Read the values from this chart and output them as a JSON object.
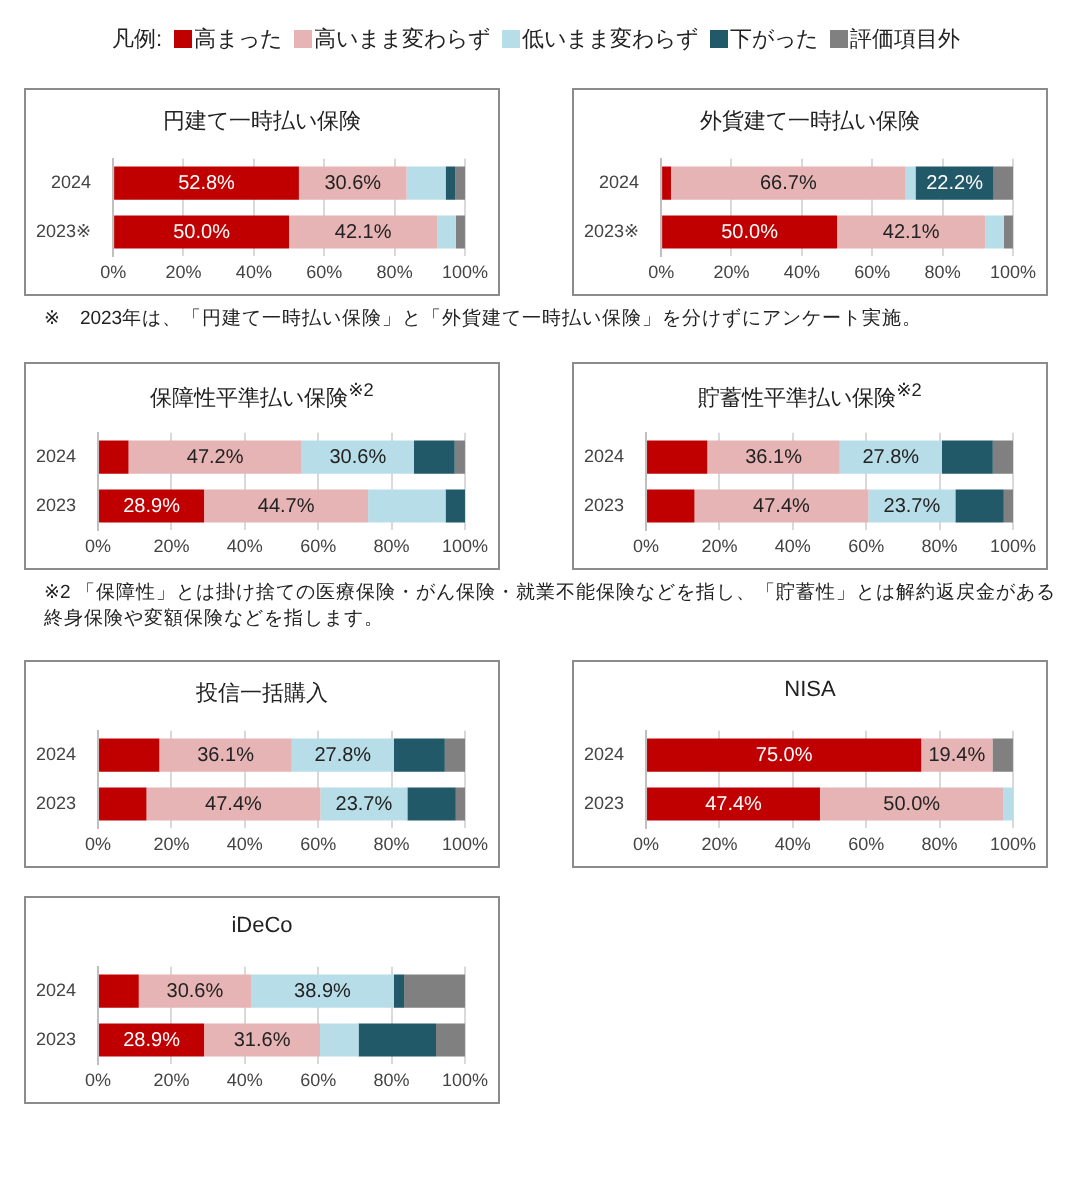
{
  "chart_data": [
    {
      "type": "bar",
      "orientation": "horizontal",
      "stacked": true,
      "title": "円建て一時払い保険",
      "legend": "top",
      "legend_title": "凡例:",
      "categories": [
        "2024",
        "2023※"
      ],
      "xlim": [
        0,
        100
      ],
      "xticks": [
        {
          "value": 0,
          "label": "0%"
        },
        {
          "value": 20,
          "label": "20%"
        },
        {
          "value": 40,
          "label": "40%"
        },
        {
          "value": 60,
          "label": "60%"
        },
        {
          "value": 80,
          "label": "80%"
        },
        {
          "value": 100,
          "label": "100%"
        }
      ],
      "grid": "x",
      "series": [
        {
          "name": "高まった",
          "color": "#c00000",
          "values": [
            52.8,
            50.0
          ],
          "value_labels": [
            "52.8%",
            "50.0%"
          ]
        },
        {
          "name": "高いまま変わらず",
          "color": "#e6b4b4",
          "values": [
            30.6,
            42.1
          ],
          "value_labels": [
            "30.6%",
            "42.1%"
          ]
        },
        {
          "name": "低いまま変わらず",
          "color": "#b7dde8",
          "values": [
            11.1,
            5.3
          ],
          "value_labels": [
            null,
            null
          ]
        },
        {
          "name": "下がった",
          "color": "#215968",
          "values": [
            2.8,
            0
          ],
          "value_labels": [
            null,
            null
          ]
        },
        {
          "name": "評価項目外",
          "color": "#808080",
          "values": [
            2.8,
            2.6
          ],
          "value_labels": [
            null,
            null
          ]
        }
      ]
    },
    {
      "type": "bar",
      "orientation": "horizontal",
      "stacked": true,
      "title": "外貨建て一時払い保険",
      "categories": [
        "2024",
        "2023※"
      ],
      "xlim": [
        0,
        100
      ],
      "xticks": [
        {
          "value": 0,
          "label": "0%"
        },
        {
          "value": 20,
          "label": "20%"
        },
        {
          "value": 40,
          "label": "40%"
        },
        {
          "value": 60,
          "label": "60%"
        },
        {
          "value": 80,
          "label": "80%"
        },
        {
          "value": 100,
          "label": "100%"
        }
      ],
      "grid": "x",
      "annotations": [
        "※　2023年は、「円建て一時払い保険」と「外貨建て一時払い保険」を分けずにアンケート実施。"
      ],
      "series": [
        {
          "color": "#c00000",
          "values": [
            2.8,
            50.0
          ],
          "value_labels": [
            null,
            "50.0%"
          ]
        },
        {
          "color": "#e6b4b4",
          "values": [
            66.7,
            42.1
          ],
          "value_labels": [
            "66.7%",
            "42.1%"
          ]
        },
        {
          "color": "#b7dde8",
          "values": [
            2.8,
            5.3
          ],
          "value_labels": [
            null,
            null
          ]
        },
        {
          "color": "#215968",
          "values": [
            22.2,
            0
          ],
          "value_labels": [
            "22.2%",
            null
          ]
        },
        {
          "color": "#808080",
          "values": [
            5.6,
            2.6
          ],
          "value_labels": [
            null,
            null
          ]
        }
      ]
    },
    {
      "type": "bar",
      "orientation": "horizontal",
      "stacked": true,
      "title": "保障性平準払い保険$^{※2}$",
      "categories": [
        "2024",
        "2023"
      ],
      "xlim": [
        0,
        100
      ],
      "xticks": [
        {
          "value": 0,
          "label": "0%"
        },
        {
          "value": 20,
          "label": "20%"
        },
        {
          "value": 40,
          "label": "40%"
        },
        {
          "value": 60,
          "label": "60%"
        },
        {
          "value": 80,
          "label": "80%"
        },
        {
          "value": 100,
          "label": "100%"
        }
      ],
      "grid": "x",
      "series": [
        {
          "color": "#c00000",
          "values": [
            8.3,
            28.9
          ],
          "value_labels": [
            null,
            "28.9%"
          ]
        },
        {
          "color": "#e6b4b4",
          "values": [
            47.2,
            44.7
          ],
          "value_labels": [
            "47.2%",
            "44.7%"
          ]
        },
        {
          "color": "#b7dde8",
          "values": [
            30.6,
            21.1
          ],
          "value_labels": [
            "30.6%",
            null
          ]
        },
        {
          "color": "#215968",
          "values": [
            11.1,
            5.3
          ],
          "value_labels": [
            null,
            null
          ]
        },
        {
          "color": "#808080",
          "values": [
            2.8,
            0
          ],
          "value_labels": [
            null,
            null
          ]
        }
      ]
    },
    {
      "type": "bar",
      "orientation": "horizontal",
      "stacked": true,
      "title": "貯蓄性平準払い保険$^{※2}$",
      "categories": [
        "2024",
        "2023"
      ],
      "xlim": [
        0,
        100
      ],
      "xticks": [
        {
          "value": 0,
          "label": "0%"
        },
        {
          "value": 20,
          "label": "20%"
        },
        {
          "value": 40,
          "label": "40%"
        },
        {
          "value": 60,
          "label": "60%"
        },
        {
          "value": 80,
          "label": "80%"
        },
        {
          "value": 100,
          "label": "100%"
        }
      ],
      "grid": "x",
      "annotations": [
        "※2 「保障性」とは掛け捨ての医療保険・がん保険・就業不能保険などを指し、「貯蓄性」とは解約返戻金がある終身保険や変額保険などを指します。"
      ],
      "series": [
        {
          "color": "#c00000",
          "values": [
            16.7,
            13.2
          ],
          "value_labels": [
            null,
            null
          ]
        },
        {
          "color": "#e6b4b4",
          "values": [
            36.1,
            47.4
          ],
          "value_labels": [
            "36.1%",
            "47.4%"
          ]
        },
        {
          "color": "#b7dde8",
          "values": [
            27.8,
            23.7
          ],
          "value_labels": [
            "27.8%",
            "23.7%"
          ]
        },
        {
          "color": "#215968",
          "values": [
            13.9,
            13.2
          ],
          "value_labels": [
            null,
            null
          ]
        },
        {
          "color": "#808080",
          "values": [
            5.6,
            2.6
          ],
          "value_labels": [
            null,
            null
          ]
        }
      ]
    },
    {
      "type": "bar",
      "orientation": "horizontal",
      "stacked": true,
      "title": "投信一括購入",
      "categories": [
        "2024",
        "2023"
      ],
      "xlim": [
        0,
        100
      ],
      "xticks": [
        {
          "value": 0,
          "label": "0%"
        },
        {
          "value": 20,
          "label": "20%"
        },
        {
          "value": 40,
          "label": "40%"
        },
        {
          "value": 60,
          "label": "60%"
        },
        {
          "value": 80,
          "label": "80%"
        },
        {
          "value": 100,
          "label": "100%"
        }
      ],
      "grid": "x",
      "series": [
        {
          "color": "#c00000",
          "values": [
            16.7,
            13.2
          ],
          "value_labels": [
            null,
            null
          ]
        },
        {
          "color": "#e6b4b4",
          "values": [
            36.1,
            47.4
          ],
          "value_labels": [
            "36.1%",
            "47.4%"
          ]
        },
        {
          "color": "#b7dde8",
          "values": [
            27.8,
            23.7
          ],
          "value_labels": [
            "27.8%",
            "23.7%"
          ]
        },
        {
          "color": "#215968",
          "values": [
            13.9,
            13.2
          ],
          "value_labels": [
            null,
            null
          ]
        },
        {
          "color": "#808080",
          "values": [
            5.6,
            2.6
          ],
          "value_labels": [
            null,
            null
          ]
        }
      ]
    },
    {
      "type": "bar",
      "orientation": "horizontal",
      "stacked": true,
      "title": "NISA",
      "categories": [
        "2024",
        "2023"
      ],
      "xlim": [
        0,
        100
      ],
      "xticks": [
        {
          "value": 0,
          "label": "0%"
        },
        {
          "value": 20,
          "label": "20%"
        },
        {
          "value": 40,
          "label": "40%"
        },
        {
          "value": 60,
          "label": "60%"
        },
        {
          "value": 80,
          "label": "80%"
        },
        {
          "value": 100,
          "label": "100%"
        }
      ],
      "grid": "x",
      "series": [
        {
          "color": "#c00000",
          "values": [
            75.0,
            47.4
          ],
          "value_labels": [
            "75.0%",
            "47.4%"
          ]
        },
        {
          "color": "#e6b4b4",
          "values": [
            19.4,
            50.0
          ],
          "value_labels": [
            "19.4%",
            "50.0%"
          ]
        },
        {
          "color": "#b7dde8",
          "values": [
            0,
            2.6
          ],
          "value_labels": [
            null,
            null
          ]
        },
        {
          "color": "#215968",
          "values": [
            0,
            0
          ],
          "value_labels": [
            null,
            null
          ]
        },
        {
          "color": "#808080",
          "values": [
            5.6,
            0
          ],
          "value_labels": [
            null,
            null
          ]
        }
      ]
    },
    {
      "type": "bar",
      "orientation": "horizontal",
      "stacked": true,
      "title": "iDeCo",
      "categories": [
        "2024",
        "2023"
      ],
      "xlim": [
        0,
        100
      ],
      "xticks": [
        {
          "value": 0,
          "label": "0%"
        },
        {
          "value": 20,
          "label": "20%"
        },
        {
          "value": 40,
          "label": "40%"
        },
        {
          "value": 60,
          "label": "60%"
        },
        {
          "value": 80,
          "label": "80%"
        },
        {
          "value": 100,
          "label": "100%"
        }
      ],
      "grid": "x",
      "series": [
        {
          "color": "#c00000",
          "values": [
            11.1,
            28.9
          ],
          "value_labels": [
            null,
            "28.9%"
          ]
        },
        {
          "color": "#e6b4b4",
          "values": [
            30.6,
            31.6
          ],
          "value_labels": [
            "30.6%",
            "31.6%"
          ]
        },
        {
          "color": "#b7dde8",
          "values": [
            38.9,
            10.5
          ],
          "value_labels": [
            "38.9%",
            null
          ]
        },
        {
          "color": "#215968",
          "values": [
            2.8,
            21.1
          ],
          "value_labels": [
            null,
            null
          ]
        },
        {
          "color": "#808080",
          "values": [
            16.7,
            7.9
          ],
          "value_labels": [
            null,
            null
          ]
        }
      ]
    }
  ]
}
